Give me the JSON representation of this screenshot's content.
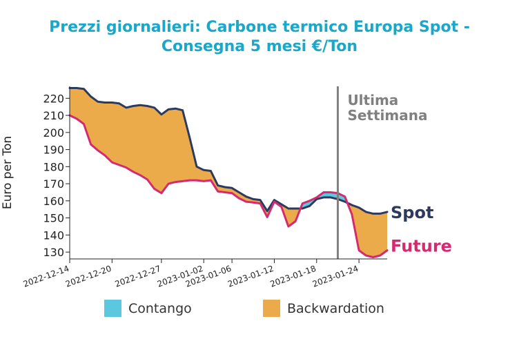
{
  "chart_data": {
    "type": "area",
    "title": [
      "Prezzi giornalieri: Carbone termico Europa Spot -",
      "Consegna 5 mesi €/Ton"
    ],
    "ylabel": "Euro per Ton",
    "ylim": [
      126,
      227
    ],
    "yticks": [
      130,
      140,
      150,
      160,
      170,
      180,
      190,
      200,
      210,
      220
    ],
    "xlim": [
      "2022-12-14",
      "2023-01-28"
    ],
    "xticks": [
      "2022-12-14",
      "2022-12-20",
      "2022-12-27",
      "2023-01-02",
      "2023-01-06",
      "2023-01-12",
      "2023-01-18",
      "2023-01-24"
    ],
    "series": [
      {
        "name": "Spot",
        "color": "#2b3a5e",
        "points": [
          [
            "2022-12-14",
            226
          ],
          [
            "2022-12-15",
            226
          ],
          [
            "2022-12-16",
            225.5
          ],
          [
            "2022-12-17",
            221
          ],
          [
            "2022-12-18",
            218
          ],
          [
            "2022-12-19",
            217.5
          ],
          [
            "2022-12-20",
            217.5
          ],
          [
            "2022-12-21",
            217
          ],
          [
            "2022-12-22",
            214.5
          ],
          [
            "2022-12-23",
            215.5
          ],
          [
            "2022-12-24",
            216
          ],
          [
            "2022-12-25",
            215.5
          ],
          [
            "2022-12-26",
            214.5
          ],
          [
            "2022-12-27",
            210.5
          ],
          [
            "2022-12-28",
            213.5
          ],
          [
            "2022-12-29",
            214
          ],
          [
            "2022-12-30",
            213
          ],
          [
            "2022-12-31",
            197
          ],
          [
            "2023-01-01",
            180
          ],
          [
            "2023-01-02",
            178
          ],
          [
            "2023-01-03",
            177.5
          ],
          [
            "2023-01-04",
            169
          ],
          [
            "2023-01-05",
            168
          ],
          [
            "2023-01-06",
            167.5
          ],
          [
            "2023-01-07",
            165
          ],
          [
            "2023-01-08",
            162.5
          ],
          [
            "2023-01-09",
            161
          ],
          [
            "2023-01-10",
            160.5
          ],
          [
            "2023-01-11",
            154
          ],
          [
            "2023-01-12",
            160.5
          ],
          [
            "2023-01-13",
            158
          ],
          [
            "2023-01-14",
            155.5
          ],
          [
            "2023-01-15",
            155.5
          ],
          [
            "2023-01-16",
            155.5
          ],
          [
            "2023-01-17",
            157
          ],
          [
            "2023-01-18",
            161
          ],
          [
            "2023-01-19",
            162
          ],
          [
            "2023-01-20",
            162
          ],
          [
            "2023-01-21",
            161
          ],
          [
            "2023-01-22",
            159.5
          ],
          [
            "2023-01-23",
            157.5
          ],
          [
            "2023-01-24",
            156
          ],
          [
            "2023-01-25",
            153.5
          ],
          [
            "2023-01-26",
            152.5
          ],
          [
            "2023-01-27",
            152.5
          ],
          [
            "2023-01-28",
            153.5
          ]
        ]
      },
      {
        "name": "Future",
        "color": "#d42a6f",
        "points": [
          [
            "2022-12-14",
            210
          ],
          [
            "2022-12-15",
            208
          ],
          [
            "2022-12-16",
            205
          ],
          [
            "2022-12-17",
            193
          ],
          [
            "2022-12-18",
            189.5
          ],
          [
            "2022-12-19",
            186.5
          ],
          [
            "2022-12-20",
            182.5
          ],
          [
            "2022-12-21",
            181
          ],
          [
            "2022-12-22",
            179.5
          ],
          [
            "2022-12-23",
            177
          ],
          [
            "2022-12-24",
            175
          ],
          [
            "2022-12-25",
            172.5
          ],
          [
            "2022-12-26",
            167
          ],
          [
            "2022-12-27",
            164.5
          ],
          [
            "2022-12-28",
            170
          ],
          [
            "2022-12-29",
            171
          ],
          [
            "2022-12-30",
            171.5
          ],
          [
            "2022-12-31",
            172
          ],
          [
            "2023-01-01",
            172
          ],
          [
            "2023-01-02",
            171.5
          ],
          [
            "2023-01-03",
            172
          ],
          [
            "2023-01-04",
            165.5
          ],
          [
            "2023-01-05",
            165
          ],
          [
            "2023-01-06",
            164.5
          ],
          [
            "2023-01-07",
            161.5
          ],
          [
            "2023-01-08",
            159.5
          ],
          [
            "2023-01-09",
            159
          ],
          [
            "2023-01-10",
            158.5
          ],
          [
            "2023-01-11",
            150.5
          ],
          [
            "2023-01-12",
            159.5
          ],
          [
            "2023-01-13",
            156.5
          ],
          [
            "2023-01-14",
            145
          ],
          [
            "2023-01-15",
            148
          ],
          [
            "2023-01-16",
            158.5
          ],
          [
            "2023-01-17",
            160
          ],
          [
            "2023-01-18",
            162
          ],
          [
            "2023-01-19",
            165
          ],
          [
            "2023-01-20",
            165
          ],
          [
            "2023-01-21",
            164.5
          ],
          [
            "2023-01-22",
            162.5
          ],
          [
            "2023-01-23",
            152
          ],
          [
            "2023-01-24",
            131
          ],
          [
            "2023-01-25",
            128
          ],
          [
            "2023-01-26",
            127
          ],
          [
            "2023-01-27",
            128
          ],
          [
            "2023-01-28",
            131
          ]
        ]
      }
    ],
    "fills": {
      "contango_color": "#5bc8e0",
      "backwardation_color": "#ebab4b"
    },
    "annotation": {
      "x": "2023-01-21",
      "label_lines": [
        "Ultima",
        "Settimana"
      ],
      "color": "#808080"
    },
    "legend": {
      "placement": "bottom",
      "items": [
        {
          "label": "Contango",
          "color": "#5bc8e0"
        },
        {
          "label": "Backwardation",
          "color": "#ebab4b"
        }
      ]
    }
  }
}
